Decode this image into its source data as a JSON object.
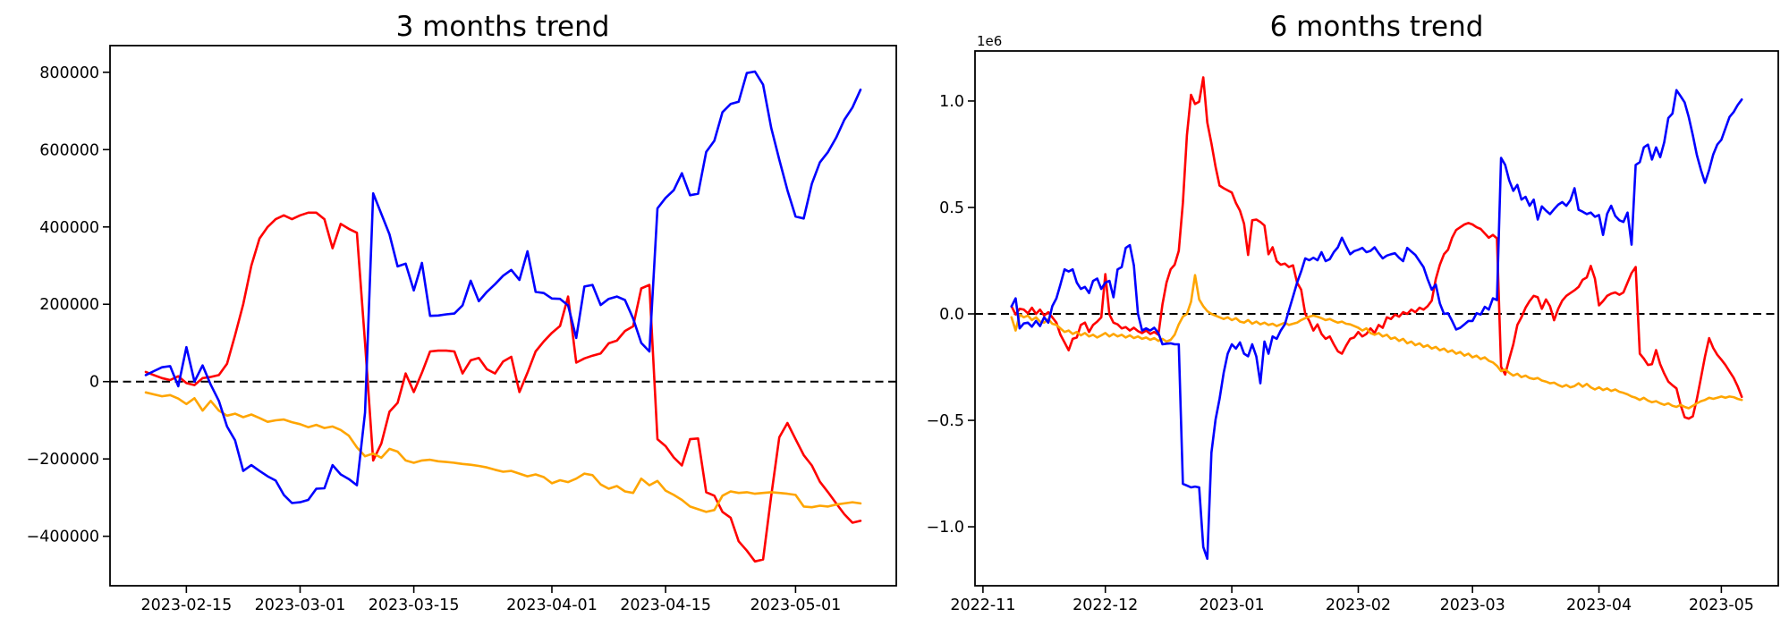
{
  "figure": {
    "background_color": "#ffffff",
    "axes_color": "#000000",
    "zero_line_color": "#000000"
  },
  "chart_data": [
    {
      "type": "line",
      "title": "3 months trend",
      "xlabel": "",
      "ylabel": "",
      "grid": false,
      "legend": "none",
      "x_start_date": "2023-02-10",
      "x_step": "1 day",
      "value_unit": 1000,
      "ylim_thousands": [
        -528,
        869
      ],
      "y_ticks_thousands": [
        800,
        600,
        400,
        200,
        0,
        -200,
        -400
      ],
      "y_tick_labels": [
        "800000",
        "600000",
        "400000",
        "200000",
        "0",
        "−200000",
        "−400000"
      ],
      "x_ticks": [
        {
          "day": 5,
          "label": "2023-02-15"
        },
        {
          "day": 19,
          "label": "2023-03-01"
        },
        {
          "day": 33,
          "label": "2023-03-15"
        },
        {
          "day": 50,
          "label": "2023-04-01"
        },
        {
          "day": 64,
          "label": "2023-04-15"
        },
        {
          "day": 80,
          "label": "2023-05-01"
        }
      ],
      "zero_line_dashed": true,
      "series": [
        {
          "name": "blue-line",
          "color": "#0000ff",
          "z": 3,
          "values_thousands": [
            17,
            27,
            37,
            40,
            -12,
            89,
            0,
            42,
            -8,
            -50,
            -116,
            -152,
            -231,
            -216,
            -231,
            -245,
            -256,
            -293,
            -314,
            -312,
            -306,
            -277,
            -276,
            -216,
            -240,
            -252,
            -268,
            -80,
            487,
            434,
            381,
            298,
            305,
            236,
            307,
            170,
            171,
            174,
            176,
            197,
            261,
            208,
            232,
            252,
            274,
            289,
            263,
            337,
            232,
            229,
            215,
            214,
            197,
            113,
            246,
            250,
            198,
            214,
            220,
            211,
            163,
            100,
            78,
            448,
            475,
            495,
            539,
            482,
            486,
            594,
            623,
            697,
            718,
            724,
            798,
            802,
            768,
            656,
            574,
            495,
            427,
            422,
            512,
            567,
            594,
            631,
            677,
            709,
            755
          ]
        },
        {
          "name": "red-line",
          "color": "#ff0000",
          "z": 1,
          "values_thousands": [
            25,
            17,
            9,
            4,
            14,
            -4,
            -9,
            9,
            12,
            17,
            46,
            120,
            200,
            300,
            370,
            400,
            420,
            430,
            420,
            430,
            437,
            437,
            420,
            345,
            408,
            395,
            385,
            100,
            -204,
            -160,
            -78,
            -55,
            21,
            -27,
            23,
            78,
            80,
            80,
            78,
            21,
            55,
            61,
            32,
            21,
            52,
            64,
            -27,
            23,
            78,
            104,
            126,
            144,
            220,
            49,
            60,
            67,
            73,
            99,
            106,
            131,
            143,
            241,
            250,
            -149,
            -167,
            -196,
            -217,
            -149,
            -147,
            -286,
            -295,
            -337,
            -352,
            -413,
            -437,
            -465,
            -460,
            -295,
            -144,
            -107,
            -149,
            -190,
            -217,
            -259,
            -286,
            -315,
            -343,
            -365,
            -360
          ]
        },
        {
          "name": "orange-line",
          "color": "#ffa500",
          "z": 2,
          "values_thousands": [
            -28,
            -33,
            -38,
            -35,
            -44,
            -58,
            -43,
            -75,
            -50,
            -75,
            -88,
            -83,
            -92,
            -85,
            -94,
            -104,
            -100,
            -98,
            -105,
            -110,
            -118,
            -112,
            -120,
            -116,
            -125,
            -140,
            -170,
            -193,
            -186,
            -197,
            -174,
            -181,
            -204,
            -210,
            -204,
            -202,
            -206,
            -208,
            -210,
            -213,
            -215,
            -218,
            -222,
            -228,
            -233,
            -231,
            -238,
            -245,
            -240,
            -247,
            -263,
            -255,
            -260,
            -251,
            -238,
            -242,
            -266,
            -277,
            -270,
            -284,
            -288,
            -251,
            -268,
            -257,
            -282,
            -293,
            -306,
            -323,
            -330,
            -337,
            -332,
            -295,
            -284,
            -288,
            -286,
            -290,
            -288,
            -286,
            -288,
            -290,
            -293,
            -323,
            -325,
            -321,
            -323,
            -318,
            -315,
            -312,
            -315
          ]
        }
      ]
    },
    {
      "type": "line",
      "title": "6 months trend",
      "xlabel": "",
      "ylabel": "",
      "grid": false,
      "legend": "none",
      "x_start_date": "2022-11-08",
      "x_step": "1 day",
      "value_unit": 1000,
      "y_offset_label": "1e6",
      "ylim_thousands": [
        -1277,
        1235
      ],
      "y_ticks_thousands": [
        1000,
        500,
        0,
        -500,
        -1000
      ],
      "y_tick_labels": [
        "1.0",
        "0.5",
        "0.0",
        "−0.5",
        "−1.0"
      ],
      "x_ticks": [
        {
          "day": -7,
          "label": "2022-11"
        },
        {
          "day": 23,
          "label": "2022-12"
        },
        {
          "day": 54,
          "label": "2023-01"
        },
        {
          "day": 85,
          "label": "2023-02"
        },
        {
          "day": 113,
          "label": "2023-03"
        },
        {
          "day": 144,
          "label": "2023-04"
        },
        {
          "day": 174,
          "label": "2023-05"
        }
      ],
      "zero_line_dashed": true,
      "series": [
        {
          "name": "blue-line",
          "color": "#0000ff",
          "z": 3,
          "values_thousands": [
            35,
            73,
            -68,
            -45,
            -41,
            -60,
            -33,
            -57,
            -16,
            -41,
            36,
            73,
            138,
            209,
            199,
            209,
            147,
            117,
            127,
            98,
            155,
            166,
            117,
            147,
            155,
            78,
            209,
            220,
            310,
            323,
            228,
            0,
            -78,
            -68,
            -78,
            -65,
            -90,
            -143,
            -140,
            -138,
            -143,
            -143,
            -798,
            -806,
            -815,
            -811,
            -815,
            -1095,
            -1150,
            -652,
            -497,
            -399,
            -277,
            -187,
            -143,
            -163,
            -134,
            -187,
            -199,
            -143,
            -200,
            -326,
            -130,
            -187,
            -106,
            -117,
            -78,
            -49,
            16,
            81,
            147,
            199,
            261,
            252,
            264,
            252,
            290,
            248,
            257,
            290,
            313,
            358,
            318,
            280,
            295,
            301,
            310,
            290,
            296,
            313,
            285,
            261,
            274,
            280,
            285,
            264,
            248,
            310,
            293,
            277,
            248,
            220,
            163,
            114,
            138,
            49,
            0,
            3,
            -33,
            -73,
            -65,
            -49,
            -33,
            -33,
            3,
            -3,
            33,
            20,
            73,
            65,
            733,
            700,
            627,
            578,
            606,
            537,
            550,
            508,
            537,
            443,
            505,
            485,
            469,
            492,
            513,
            525,
            508,
            534,
            590,
            489,
            480,
            469,
            476,
            456,
            464,
            371,
            470,
            508,
            460,
            440,
            432,
            476,
            325,
            700,
            713,
            782,
            795,
            725,
            782,
            736,
            806,
            920,
            941,
            1051,
            1023,
            994,
            925,
            839,
            746,
            676,
            616,
            676,
            749,
            795,
            818,
            871,
            925,
            948,
            981,
            1007
          ]
        },
        {
          "name": "red-line",
          "color": "#ff0000",
          "z": 1,
          "values_thousands": [
            36,
            -3,
            24,
            20,
            3,
            29,
            0,
            20,
            -8,
            8,
            -16,
            -41,
            -98,
            -134,
            -171,
            -117,
            -111,
            -52,
            -41,
            -85,
            -52,
            -36,
            -16,
            187,
            -3,
            -41,
            -49,
            -68,
            -62,
            -78,
            -65,
            -81,
            -90,
            -78,
            -94,
            -85,
            -98,
            46,
            147,
            209,
            231,
            296,
            521,
            839,
            1029,
            986,
            997,
            1111,
            899,
            801,
            692,
            603,
            590,
            580,
            570,
            521,
            485,
            423,
            277,
            440,
            443,
            432,
            415,
            280,
            313,
            248,
            231,
            236,
            220,
            228,
            147,
            114,
            0,
            -33,
            -78,
            -49,
            -94,
            -117,
            -106,
            -143,
            -176,
            -187,
            -150,
            -117,
            -111,
            -85,
            -106,
            -94,
            -68,
            -90,
            -52,
            -65,
            -16,
            -24,
            -3,
            -13,
            8,
            0,
            20,
            8,
            29,
            20,
            36,
            62,
            163,
            231,
            280,
            301,
            358,
            394,
            407,
            420,
            427,
            420,
            407,
            399,
            378,
            358,
            371,
            355,
            -248,
            -285,
            -212,
            -143,
            -52,
            -16,
            29,
            60,
            85,
            78,
            24,
            68,
            36,
            -30,
            24,
            62,
            85,
            98,
            111,
            127,
            160,
            171,
            225,
            166,
            40,
            60,
            85,
            95,
            101,
            90,
            101,
            147,
            192,
            220,
            -187,
            -210,
            -240,
            -236,
            -170,
            -236,
            -280,
            -318,
            -335,
            -350,
            -427,
            -485,
            -492,
            -481,
            -400,
            -300,
            -200,
            -114,
            -160,
            -192,
            -215,
            -240,
            -270,
            -300,
            -340,
            -390
          ]
        },
        {
          "name": "orange-line",
          "color": "#ffa500",
          "z": 2,
          "values_thousands": [
            -16,
            -78,
            -3,
            -16,
            -8,
            -29,
            -16,
            -36,
            -41,
            -24,
            -46,
            -52,
            -68,
            -85,
            -78,
            -94,
            -85,
            -101,
            -90,
            -106,
            -98,
            -111,
            -101,
            -90,
            -106,
            -94,
            -106,
            -98,
            -111,
            -101,
            -114,
            -106,
            -117,
            -111,
            -122,
            -114,
            -127,
            -117,
            -130,
            -122,
            -98,
            -49,
            -13,
            0,
            57,
            182,
            68,
            36,
            13,
            0,
            -8,
            -16,
            -24,
            -16,
            -29,
            -20,
            -36,
            -41,
            -29,
            -46,
            -36,
            -49,
            -41,
            -52,
            -46,
            -57,
            -49,
            -41,
            -52,
            -46,
            -41,
            -29,
            -20,
            -13,
            -8,
            -13,
            -20,
            -29,
            -24,
            -33,
            -41,
            -36,
            -46,
            -49,
            -57,
            -65,
            -78,
            -68,
            -90,
            -98,
            -90,
            -106,
            -98,
            -117,
            -111,
            -127,
            -117,
            -138,
            -130,
            -147,
            -138,
            -155,
            -147,
            -163,
            -155,
            -171,
            -163,
            -179,
            -171,
            -187,
            -179,
            -196,
            -187,
            -204,
            -196,
            -212,
            -204,
            -220,
            -228,
            -244,
            -269,
            -261,
            -277,
            -290,
            -281,
            -297,
            -290,
            -301,
            -306,
            -301,
            -313,
            -318,
            -326,
            -323,
            -334,
            -342,
            -334,
            -345,
            -339,
            -326,
            -342,
            -329,
            -345,
            -355,
            -345,
            -358,
            -350,
            -362,
            -355,
            -366,
            -371,
            -378,
            -388,
            -394,
            -404,
            -394,
            -407,
            -415,
            -410,
            -420,
            -427,
            -420,
            -432,
            -437,
            -427,
            -437,
            -443,
            -432,
            -420,
            -410,
            -404,
            -394,
            -399,
            -394,
            -388,
            -394,
            -388,
            -391,
            -399,
            -404
          ]
        }
      ]
    }
  ]
}
